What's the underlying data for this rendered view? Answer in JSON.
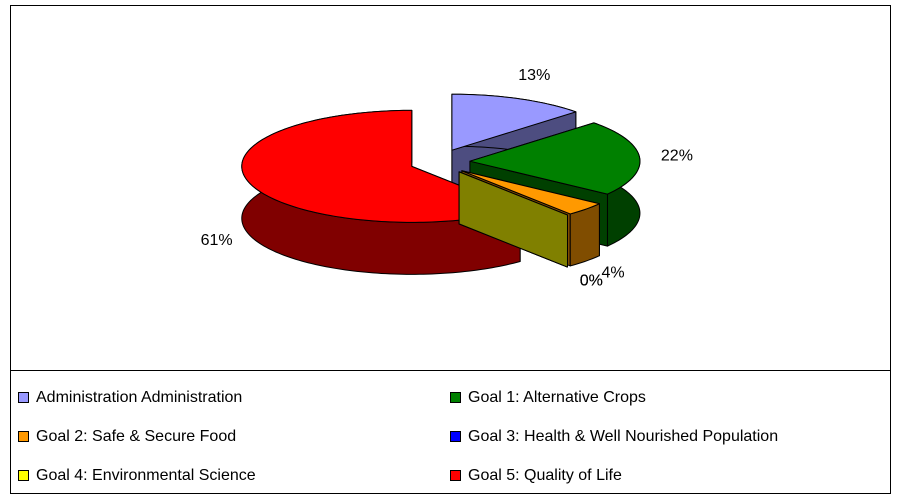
{
  "chart_data": {
    "type": "pie3d",
    "categories": [
      "Administration Administration",
      "Goal 1: Alternative Crops",
      "Goal 2:  Safe & Secure Food",
      "Goal 3:  Health & Well Nourished Population",
      "Goal 4: Environmental Science",
      "Goal 5: Quality of Life"
    ],
    "values": [
      13,
      22,
      4,
      0,
      0,
      61
    ],
    "value_labels": [
      "13%",
      "22%",
      "4%",
      "0%",
      "0%",
      "61%"
    ],
    "colors": [
      "#9999ff",
      "#008000",
      "#ff9900",
      "#0000ff",
      "#ffff00",
      "#ff0000"
    ],
    "legend": "bottom"
  }
}
